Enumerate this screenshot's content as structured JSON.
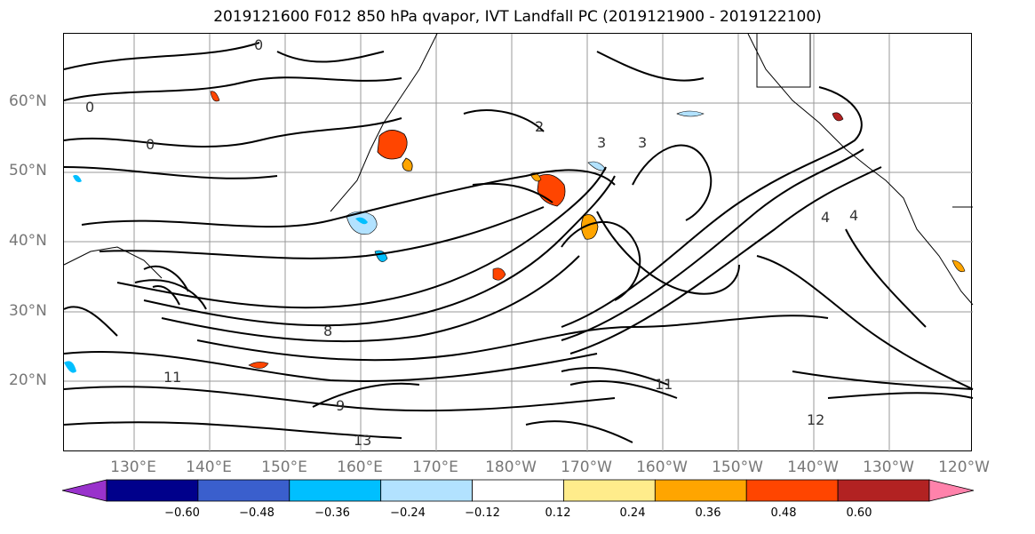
{
  "title": "2019121600 F012 850 hPa qvapor, IVT Landfall PC (2019121900 - 2019122100)",
  "lat_labels": [
    "60°N",
    "50°N",
    "40°N",
    "30°N",
    "20°N"
  ],
  "lon_labels": [
    "130°E",
    "140°E",
    "150°E",
    "160°E",
    "170°E",
    "180°W",
    "170°W",
    "160°W",
    "150°W",
    "140°W",
    "130°W",
    "120°W"
  ],
  "contour_labels": [
    "0",
    "0",
    "0",
    "2",
    "3",
    "3",
    "4",
    "4",
    "8",
    "11",
    "13",
    "12",
    "9",
    "11"
  ],
  "colorbar": {
    "ticks": [
      "−0.60",
      "−0.48",
      "−0.36",
      "−0.24",
      "−0.12",
      "0.12",
      "0.24",
      "0.36",
      "0.48",
      "0.60"
    ],
    "colors": [
      "#9932cc",
      "#00008b",
      "#3a5fcd",
      "#00bfff",
      "#b2e2ff",
      "#ffffff",
      "#ffec8b",
      "#ffa500",
      "#ff4500",
      "#b22222",
      "#ff82ab"
    ]
  }
}
